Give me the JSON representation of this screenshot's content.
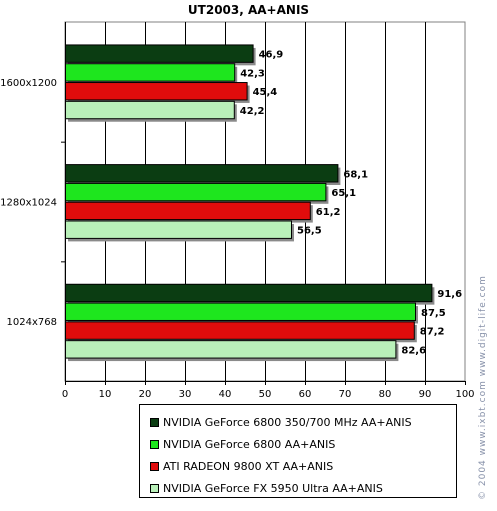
{
  "chart_data": {
    "type": "bar",
    "orientation": "horizontal",
    "title": "UT2003, AA+ANIS",
    "categories": [
      "1600x1200",
      "1280x1024",
      "1024x768"
    ],
    "series": [
      {
        "name": "NVIDIA GeForce 6800 350/700 MHz AA+ANIS",
        "color": "#0b3d12",
        "values": [
          46.9,
          68.1,
          91.6
        ],
        "labels": [
          "46,9",
          "68,1",
          "91,6"
        ]
      },
      {
        "name": "NVIDIA GeForce 6800 AA+ANIS",
        "color": "#1ee61e",
        "values": [
          42.3,
          65.1,
          87.5
        ],
        "labels": [
          "42,3",
          "65,1",
          "87,5"
        ]
      },
      {
        "name": "ATI RADEON 9800 XT AA+ANIS",
        "color": "#e00c0c",
        "values": [
          45.4,
          61.2,
          87.2
        ],
        "labels": [
          "45,4",
          "61,2",
          "87,2"
        ]
      },
      {
        "name": "NVIDIA GeForce FX 5950 Ultra AA+ANIS",
        "color": "#b9f0b9",
        "values": [
          42.2,
          56.5,
          82.6
        ],
        "labels": [
          "42,2",
          "56,5",
          "82,6"
        ]
      }
    ],
    "xlim": [
      0,
      100
    ],
    "xticks": [
      0,
      10,
      20,
      30,
      40,
      50,
      60,
      70,
      80,
      90,
      100
    ],
    "grid": true,
    "legend_position": "bottom"
  },
  "watermark": "© 2004 www.ixbt.com  www.digit-life.com"
}
